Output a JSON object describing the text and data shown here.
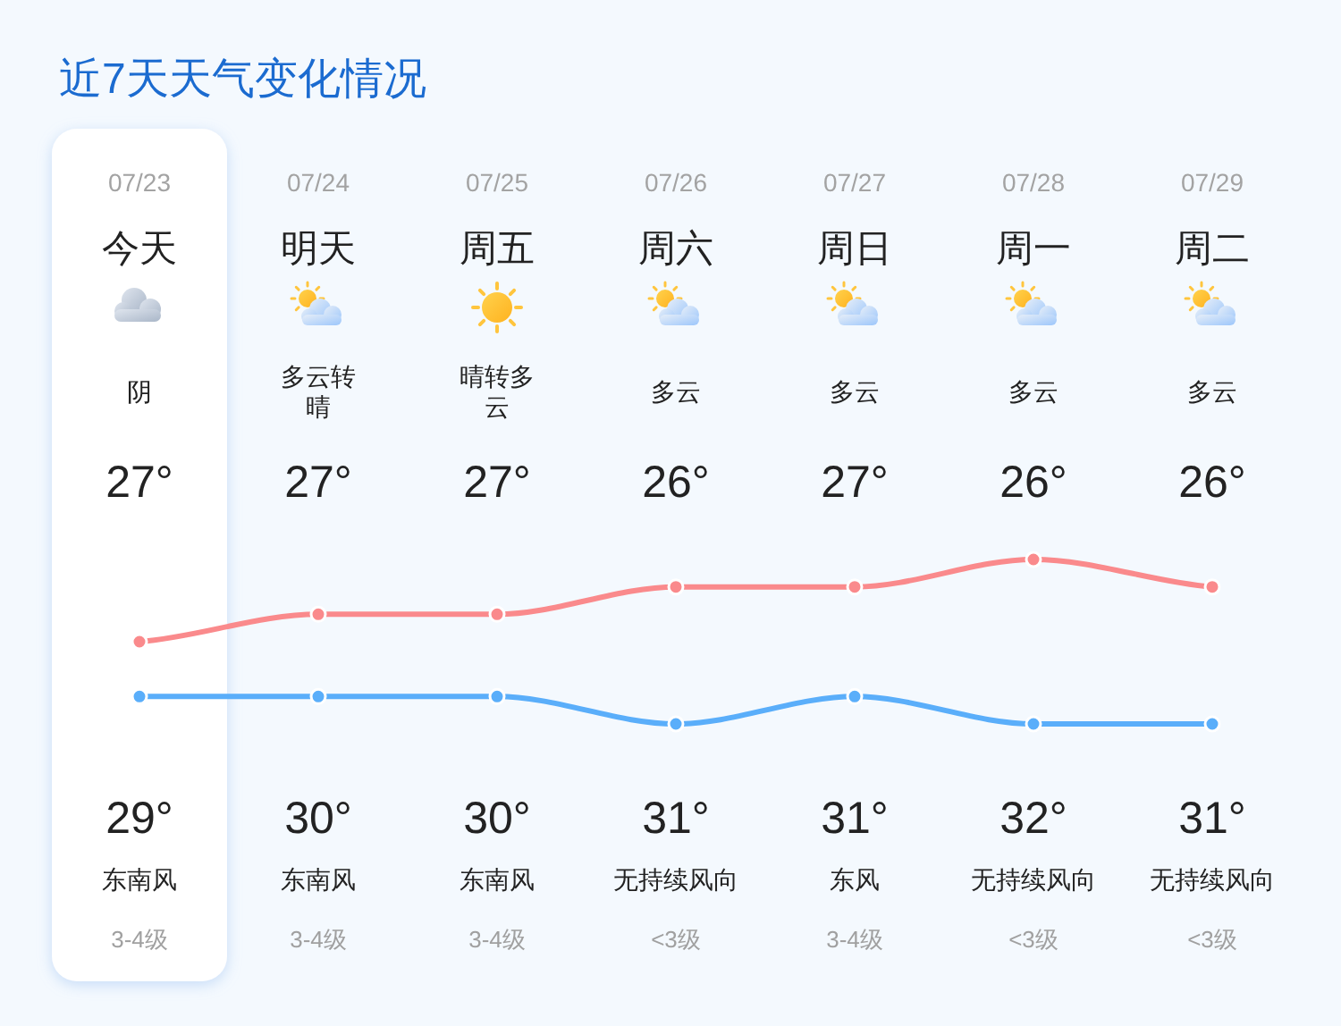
{
  "chart_data": {
    "type": "line",
    "title": "近7天天气变化情况",
    "categories": [
      "07/23",
      "07/24",
      "07/25",
      "07/26",
      "07/27",
      "07/28",
      "07/29"
    ],
    "series": [
      {
        "color": "#5aaefa",
        "values": [
          27,
          27,
          27,
          26,
          27,
          26,
          26
        ],
        "value_labels": [
          "27°",
          "27°",
          "27°",
          "26°",
          "27°",
          "26°",
          "26°"
        ]
      },
      {
        "color": "#fa8a8c",
        "values": [
          29,
          30,
          30,
          31,
          31,
          32,
          31
        ],
        "value_labels": [
          "29°",
          "30°",
          "30°",
          "31°",
          "31°",
          "32°",
          "31°"
        ]
      }
    ],
    "marker": "circle",
    "line_style": "solid",
    "bands": [
      {
        "axis": "x",
        "from": "07/23",
        "to": "07/23",
        "color": "#ffffff"
      }
    ],
    "annotations": [
      "今天",
      "明天",
      "周五",
      "周六",
      "周日",
      "周一",
      "周二",
      "阴",
      "多云转晴",
      "晴转多云",
      "多云",
      "多云",
      "多云",
      "多云",
      "东南风",
      "东南风",
      "东南风",
      "无持续风向",
      "东风",
      "无持续风向",
      "无持续风向",
      "3-4级",
      "3-4级",
      "3-4级",
      "<3级",
      "3-4级",
      "<3级",
      "<3级"
    ]
  }
}
